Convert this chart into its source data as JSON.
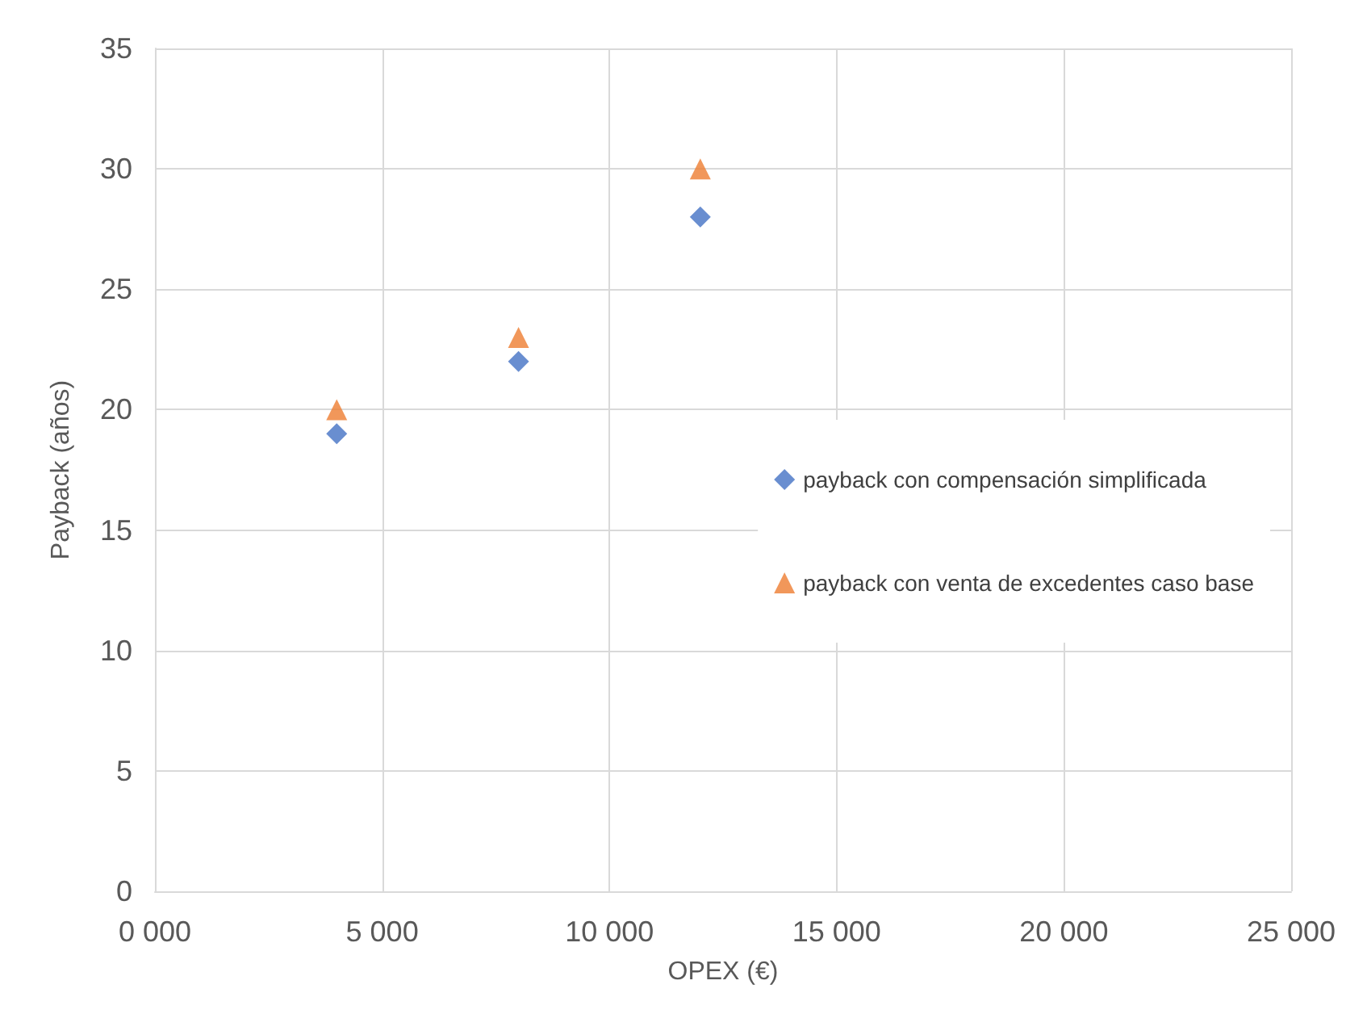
{
  "chart_data": {
    "type": "scatter",
    "xlabel": "OPEX (€)",
    "ylabel": "Payback (años)",
    "xlim": [
      0,
      25000
    ],
    "xticks": [
      {
        "value": 0,
        "label": "0 000"
      },
      {
        "value": 5000,
        "label": "5 000"
      },
      {
        "value": 10000,
        "label": "10 000"
      },
      {
        "value": 15000,
        "label": "15 000"
      },
      {
        "value": 20000,
        "label": "20 000"
      },
      {
        "value": 25000,
        "label": "25 000"
      }
    ],
    "ylim": [
      0,
      35
    ],
    "yticks": [
      0,
      5,
      10,
      15,
      20,
      25,
      30,
      35
    ],
    "grid": true,
    "legend": "right",
    "x": [
      4000,
      8000,
      12000
    ],
    "series": [
      {
        "name": "payback con compensación simplificada",
        "color": "#4472c4",
        "marker": "diamond",
        "values": [
          19,
          22,
          28
        ]
      },
      {
        "name": "payback con venta de excedentes caso base",
        "color": "#ed7d31",
        "marker": "triangle",
        "values": [
          20,
          23,
          30
        ]
      }
    ]
  }
}
